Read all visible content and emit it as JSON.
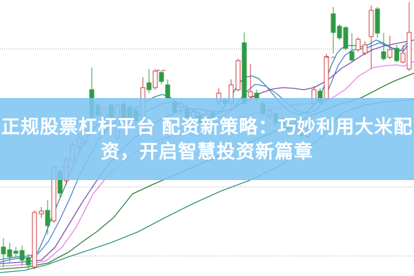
{
  "headline": {
    "line1": "正规股票杠杆平台 配资新策略：巧妙利用大米配",
    "line2": "资，开启智慧投资新篇章"
  },
  "overlay": {
    "background_rgba": "rgba(126,196,242,0.87)",
    "text_color": "#ffffff"
  },
  "colors": {
    "background": "#ffffff",
    "grid": "#9e9e9e",
    "up_candle": "#cc3a3a",
    "down_candle": "#2e9b44",
    "hollow_fill": "#ffffff"
  },
  "chart_data": {
    "type": "candlestick",
    "title": "",
    "xlabel": "",
    "ylabel": "",
    "legend": "none",
    "axis_labels_visible": false,
    "grid": "horizontal-dotted",
    "xlim": [
      0,
      600
    ],
    "ylim": [
      0,
      100
    ],
    "grid_y_values": [
      7.25,
      32.25,
      57.25,
      82.25
    ],
    "candle_columns": [
      "x",
      "open",
      "high",
      "low",
      "close"
    ],
    "candles": [
      [
        5,
        10.5,
        13.75,
        3.25,
        8
      ],
      [
        14,
        9.5,
        12,
        5,
        7
      ],
      [
        23,
        9,
        10.5,
        6.75,
        8.25
      ],
      [
        32,
        9.25,
        11,
        3.75,
        5.75
      ],
      [
        41,
        6.5,
        8,
        2.5,
        4
      ],
      [
        50,
        3.25,
        23.75,
        2.5,
        23
      ],
      [
        60,
        22.5,
        25,
        21,
        23.5
      ],
      [
        69,
        23.75,
        27.5,
        15,
        18.25
      ],
      [
        78,
        20,
        40,
        19.25,
        39.5
      ],
      [
        87,
        38,
        39,
        28,
        30
      ],
      [
        96,
        34.5,
        43.5,
        33,
        42.5
      ],
      [
        105,
        42,
        48.75,
        41.25,
        47.5
      ],
      [
        115,
        47,
        51.25,
        45.5,
        50
      ],
      [
        124,
        48.75,
        53.75,
        47,
        52.5
      ],
      [
        133,
        67.5,
        75.5,
        57,
        57.5
      ],
      [
        142,
        62,
        63,
        57.5,
        58.25
      ],
      [
        151,
        52.5,
        61.25,
        52,
        60.75
      ],
      [
        161,
        62,
        62.5,
        56.75,
        57.25
      ],
      [
        170,
        50,
        62.5,
        49.5,
        62
      ],
      [
        179,
        62.25,
        63,
        57,
        57.5
      ],
      [
        188,
        61.25,
        62,
        55.5,
        57.5
      ],
      [
        197,
        60,
        61.25,
        55,
        56.25
      ],
      [
        207,
        52.5,
        72,
        51.5,
        68.25
      ],
      [
        216,
        70,
        75,
        66.25,
        67.5
      ],
      [
        225,
        68.25,
        75,
        67.5,
        74.25
      ],
      [
        234,
        73.75,
        74.5,
        69.5,
        70.5
      ],
      [
        243,
        69.25,
        71.25,
        63.75,
        64.5
      ],
      [
        253,
        63,
        64,
        58.75,
        59.5
      ],
      [
        262,
        61.25,
        63.25,
        58.5,
        62.5
      ],
      [
        271,
        60.5,
        62,
        56.5,
        57.5
      ],
      [
        280,
        57,
        60.5,
        56,
        59.5
      ],
      [
        289,
        58,
        59.5,
        54.5,
        55.5
      ],
      [
        299,
        56.25,
        60,
        55,
        58.75
      ],
      [
        308,
        59.25,
        60.5,
        56,
        57
      ],
      [
        317,
        63,
        68,
        62,
        66.25
      ],
      [
        326,
        63.75,
        64.5,
        61.75,
        62.5
      ],
      [
        335,
        62.5,
        71.25,
        61.25,
        69.25
      ],
      [
        345,
        67.5,
        78.75,
        67,
        78
      ],
      [
        354,
        84.5,
        88.25,
        62,
        62.5
      ],
      [
        363,
        65,
        76.75,
        63,
        66.75
      ],
      [
        372,
        66.25,
        67.5,
        63.25,
        64.25
      ],
      [
        381,
        62.5,
        63.75,
        58,
        58.75
      ],
      [
        391,
        58,
        61.25,
        57,
        60
      ],
      [
        400,
        58.75,
        60,
        54.5,
        55.5
      ],
      [
        409,
        55,
        58.5,
        53.75,
        57
      ],
      [
        418,
        56,
        57.5,
        52,
        53
      ],
      [
        427,
        52.5,
        56.25,
        51.25,
        55
      ],
      [
        437,
        53.75,
        55.5,
        50,
        51
      ],
      [
        446,
        50.5,
        55,
        49.5,
        53.5
      ],
      [
        455,
        62.5,
        68.75,
        62,
        67.5
      ],
      [
        464,
        67,
        68,
        62,
        63
      ],
      [
        473,
        64.25,
        80.5,
        63,
        79.5
      ],
      [
        483,
        95,
        97.5,
        80.75,
        88.25
      ],
      [
        492,
        90.5,
        91.25,
        85.5,
        86.25
      ],
      [
        501,
        90,
        90.5,
        81.75,
        82.5
      ],
      [
        510,
        81.25,
        88,
        77.5,
        78.25
      ],
      [
        519,
        82,
        86.5,
        81.25,
        85.75
      ],
      [
        529,
        80.75,
        85,
        80,
        83.75
      ],
      [
        538,
        86.75,
        98,
        75,
        96.25
      ],
      [
        547,
        96.75,
        97.5,
        86.25,
        88
      ],
      [
        556,
        81.25,
        88,
        78,
        78.75
      ],
      [
        565,
        79.25,
        87,
        78.5,
        82
      ],
      [
        575,
        82.5,
        83.75,
        77.5,
        78
      ],
      [
        584,
        77.5,
        83.75,
        77,
        80.75
      ],
      [
        593,
        75,
        99.25,
        74.25,
        88.25
      ]
    ],
    "reference_dashes": [
      {
        "x1": 80,
        "x2": 102,
        "value": 39.5
      },
      {
        "x1": 227,
        "x2": 241,
        "value": 74.5
      },
      {
        "x1": 472,
        "x2": 485,
        "value": 79.25
      }
    ],
    "series": [
      {
        "name": "ma-cyan",
        "color": "#2e8ba0",
        "points": [
          [
            0,
            5
          ],
          [
            15,
            6
          ],
          [
            30,
            6.5
          ],
          [
            45,
            6.75
          ],
          [
            55,
            8.75
          ],
          [
            65,
            14.5
          ],
          [
            75,
            21.25
          ],
          [
            85,
            27
          ],
          [
            95,
            33
          ],
          [
            105,
            39.25
          ],
          [
            115,
            45
          ],
          [
            125,
            49.5
          ],
          [
            135,
            53
          ],
          [
            145,
            56
          ],
          [
            155,
            58
          ],
          [
            165,
            59.25
          ],
          [
            175,
            60
          ],
          [
            185,
            60
          ],
          [
            195,
            60.5
          ],
          [
            205,
            62
          ],
          [
            215,
            63.75
          ],
          [
            225,
            65
          ],
          [
            235,
            65.75
          ],
          [
            245,
            65
          ],
          [
            255,
            63.25
          ],
          [
            265,
            61.25
          ],
          [
            275,
            59.25
          ],
          [
            285,
            57.5
          ],
          [
            295,
            57
          ],
          [
            305,
            57.5
          ],
          [
            315,
            58.75
          ],
          [
            325,
            61.25
          ],
          [
            335,
            65
          ],
          [
            345,
            69.5
          ],
          [
            355,
            72
          ],
          [
            365,
            72.5
          ],
          [
            375,
            71.5
          ],
          [
            385,
            69
          ],
          [
            395,
            66
          ],
          [
            405,
            63
          ],
          [
            415,
            60.5
          ],
          [
            425,
            59
          ],
          [
            435,
            58.5
          ],
          [
            445,
            59.5
          ],
          [
            455,
            62
          ],
          [
            465,
            65.5
          ],
          [
            472,
            70.5
          ],
          [
            480,
            76.25
          ],
          [
            488,
            80.5
          ],
          [
            495,
            82.5
          ],
          [
            505,
            83.5
          ],
          [
            515,
            83.5
          ],
          [
            525,
            83
          ],
          [
            535,
            84
          ],
          [
            545,
            85.5
          ],
          [
            555,
            84.5
          ],
          [
            565,
            83
          ],
          [
            575,
            82
          ],
          [
            585,
            81.5
          ],
          [
            595,
            85.5
          ]
        ]
      },
      {
        "name": "ma-blue",
        "color": "#4a7fd1",
        "points": [
          [
            0,
            6
          ],
          [
            20,
            6.75
          ],
          [
            40,
            7.25
          ],
          [
            55,
            8
          ],
          [
            70,
            12.5
          ],
          [
            85,
            19.5
          ],
          [
            100,
            27.5
          ],
          [
            115,
            36.25
          ],
          [
            130,
            43.75
          ],
          [
            145,
            50
          ],
          [
            160,
            54.5
          ],
          [
            175,
            57
          ],
          [
            190,
            58
          ],
          [
            205,
            58.75
          ],
          [
            220,
            60.5
          ],
          [
            235,
            62.5
          ],
          [
            250,
            63
          ],
          [
            265,
            62
          ],
          [
            280,
            60
          ],
          [
            295,
            58
          ],
          [
            310,
            57
          ],
          [
            325,
            58
          ],
          [
            340,
            61.25
          ],
          [
            355,
            66.25
          ],
          [
            370,
            69.5
          ],
          [
            385,
            68.75
          ],
          [
            400,
            66.25
          ],
          [
            415,
            63
          ],
          [
            430,
            60
          ],
          [
            445,
            58.75
          ],
          [
            460,
            60.5
          ],
          [
            470,
            63.75
          ],
          [
            480,
            70
          ],
          [
            490,
            76.25
          ],
          [
            500,
            80
          ],
          [
            510,
            81.75
          ],
          [
            520,
            82.25
          ],
          [
            530,
            82.5
          ],
          [
            540,
            83.5
          ],
          [
            550,
            84.5
          ],
          [
            560,
            83.5
          ],
          [
            570,
            82.25
          ],
          [
            580,
            81.5
          ],
          [
            590,
            84.5
          ]
        ]
      },
      {
        "name": "ma-purple",
        "color": "#7a50aa",
        "points": [
          [
            0,
            4.5
          ],
          [
            30,
            5
          ],
          [
            60,
            5.75
          ],
          [
            80,
            10.5
          ],
          [
            100,
            18.75
          ],
          [
            120,
            27
          ],
          [
            140,
            34.5
          ],
          [
            160,
            41.25
          ],
          [
            180,
            46.75
          ],
          [
            200,
            51
          ],
          [
            215,
            53.75
          ],
          [
            230,
            56.25
          ],
          [
            245,
            58.25
          ],
          [
            260,
            59.75
          ],
          [
            275,
            60.5
          ],
          [
            290,
            60.5
          ],
          [
            305,
            59.75
          ],
          [
            320,
            59.5
          ],
          [
            335,
            60.5
          ],
          [
            350,
            62.5
          ],
          [
            365,
            64.75
          ],
          [
            380,
            66.5
          ],
          [
            395,
            67.75
          ],
          [
            410,
            68.25
          ],
          [
            425,
            68
          ],
          [
            440,
            67.5
          ],
          [
            455,
            68.25
          ],
          [
            468,
            70
          ],
          [
            480,
            72
          ],
          [
            495,
            75.25
          ],
          [
            510,
            77.5
          ],
          [
            525,
            80
          ],
          [
            540,
            82
          ],
          [
            555,
            83.25
          ],
          [
            570,
            84
          ],
          [
            585,
            84.75
          ],
          [
            600,
            85.5
          ]
        ]
      },
      {
        "name": "ma-pink",
        "color": "#e47fe1",
        "points": [
          [
            0,
            3.5
          ],
          [
            40,
            4.25
          ],
          [
            67,
            5.5
          ],
          [
            90,
            10.5
          ],
          [
            110,
            17.5
          ],
          [
            135,
            29.75
          ],
          [
            160,
            37.5
          ],
          [
            190,
            43.75
          ],
          [
            220,
            48.25
          ],
          [
            260,
            51.75
          ],
          [
            300,
            54.5
          ],
          [
            340,
            57
          ],
          [
            380,
            59.5
          ],
          [
            420,
            62
          ],
          [
            455,
            62.5
          ],
          [
            480,
            64.25
          ],
          [
            500,
            67.5
          ],
          [
            520,
            72.5
          ],
          [
            540,
            75.5
          ],
          [
            560,
            76.25
          ],
          [
            575,
            76.5
          ],
          [
            585,
            76
          ],
          [
            600,
            77.75
          ]
        ]
      },
      {
        "name": "ma-green",
        "color": "#2f7d35",
        "points": [
          [
            0,
            2.5
          ],
          [
            40,
            3.25
          ],
          [
            70,
            4.75
          ],
          [
            100,
            8.75
          ],
          [
            120,
            12.5
          ],
          [
            140,
            16
          ],
          [
            165,
            21.25
          ],
          [
            192,
            29.75
          ],
          [
            220,
            33
          ],
          [
            250,
            36.25
          ],
          [
            280,
            39.5
          ],
          [
            310,
            42.75
          ],
          [
            340,
            46
          ],
          [
            370,
            49.25
          ],
          [
            400,
            52.5
          ],
          [
            430,
            55.75
          ],
          [
            460,
            59
          ],
          [
            490,
            62
          ],
          [
            523,
            64.5
          ],
          [
            550,
            68
          ],
          [
            570,
            70.5
          ],
          [
            585,
            72
          ],
          [
            600,
            73.5
          ]
        ]
      },
      {
        "name": "ma-teal",
        "color": "#2e8f85",
        "points": [
          [
            0,
            1.25
          ],
          [
            35,
            2
          ],
          [
            67,
            4
          ],
          [
            100,
            7
          ],
          [
            130,
            9.5
          ],
          [
            160,
            12
          ],
          [
            200,
            16
          ],
          [
            240,
            21.25
          ],
          [
            280,
            26.25
          ],
          [
            320,
            30.75
          ],
          [
            360,
            34.5
          ],
          [
            400,
            39.25
          ],
          [
            440,
            45
          ],
          [
            470,
            51.25
          ],
          [
            485,
            56.25
          ],
          [
            495,
            58.75
          ],
          [
            510,
            60.5
          ],
          [
            530,
            62
          ],
          [
            555,
            63
          ],
          [
            580,
            63.5
          ],
          [
            600,
            64
          ]
        ]
      }
    ]
  }
}
